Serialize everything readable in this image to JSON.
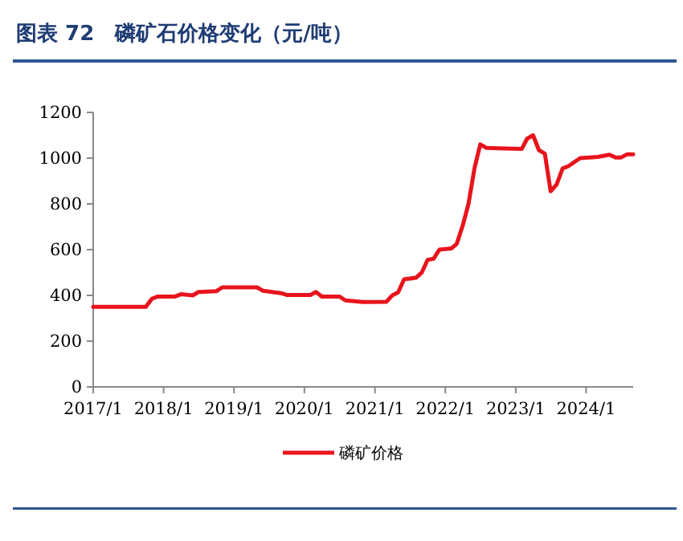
{
  "chart_data": {
    "type": "line",
    "title": "图表 72　磷矿石价格变化（元/吨）",
    "xlim": [
      "2017-01",
      "2024-09"
    ],
    "xticks": [
      {
        "value": "2017-01",
        "label": "2017/1"
      },
      {
        "value": "2018-01",
        "label": "2018/1"
      },
      {
        "value": "2019-01",
        "label": "2019/1"
      },
      {
        "value": "2020-01",
        "label": "2020/1"
      },
      {
        "value": "2021-01",
        "label": "2021/1"
      },
      {
        "value": "2022-01",
        "label": "2022/1"
      },
      {
        "value": "2023-01",
        "label": "2023/1"
      },
      {
        "value": "2024-01",
        "label": "2024/1"
      }
    ],
    "ylim": [
      0,
      1200
    ],
    "yticks": [
      0,
      200,
      400,
      600,
      800,
      1000,
      1200
    ],
    "grid": false,
    "legend": "bottom",
    "marker": "none",
    "line_style": "solid",
    "series": [
      {
        "name": "磷矿价格",
        "color": "#e8141c",
        "x": [
          "2017-01",
          "2017-10",
          "2017-11",
          "2017-12",
          "2018-03",
          "2018-04",
          "2018-06",
          "2018-07",
          "2018-10",
          "2018-11",
          "2019-05",
          "2019-06",
          "2019-09",
          "2019-10",
          "2020-02",
          "2020-03",
          "2020-04",
          "2020-07",
          "2020-08",
          "2020-11",
          "2021-03",
          "2021-04",
          "2021-05",
          "2021-06",
          "2021-08",
          "2021-09",
          "2021-10",
          "2021-11",
          "2021-12",
          "2022-02",
          "2022-03",
          "2022-04",
          "2022-05",
          "2022-06",
          "2022-07",
          "2022-08",
          "2022-10",
          "2023-02",
          "2023-03",
          "2023-04",
          "2023-05",
          "2023-06",
          "2023-07",
          "2023-08",
          "2023-09",
          "2023-10",
          "2023-12",
          "2024-03",
          "2024-05",
          "2024-06",
          "2024-07",
          "2024-08",
          "2024-09"
        ],
        "values": [
          350,
          350,
          385,
          395,
          395,
          405,
          400,
          415,
          418,
          435,
          435,
          420,
          410,
          402,
          402,
          415,
          395,
          395,
          378,
          371,
          372,
          400,
          413,
          470,
          477,
          500,
          555,
          560,
          600,
          605,
          625,
          705,
          800,
          955,
          1060,
          1045,
          1043,
          1040,
          1085,
          1100,
          1035,
          1020,
          855,
          885,
          955,
          965,
          1000,
          1005,
          1015,
          1003,
          1003,
          1017,
          1017
        ]
      }
    ]
  }
}
